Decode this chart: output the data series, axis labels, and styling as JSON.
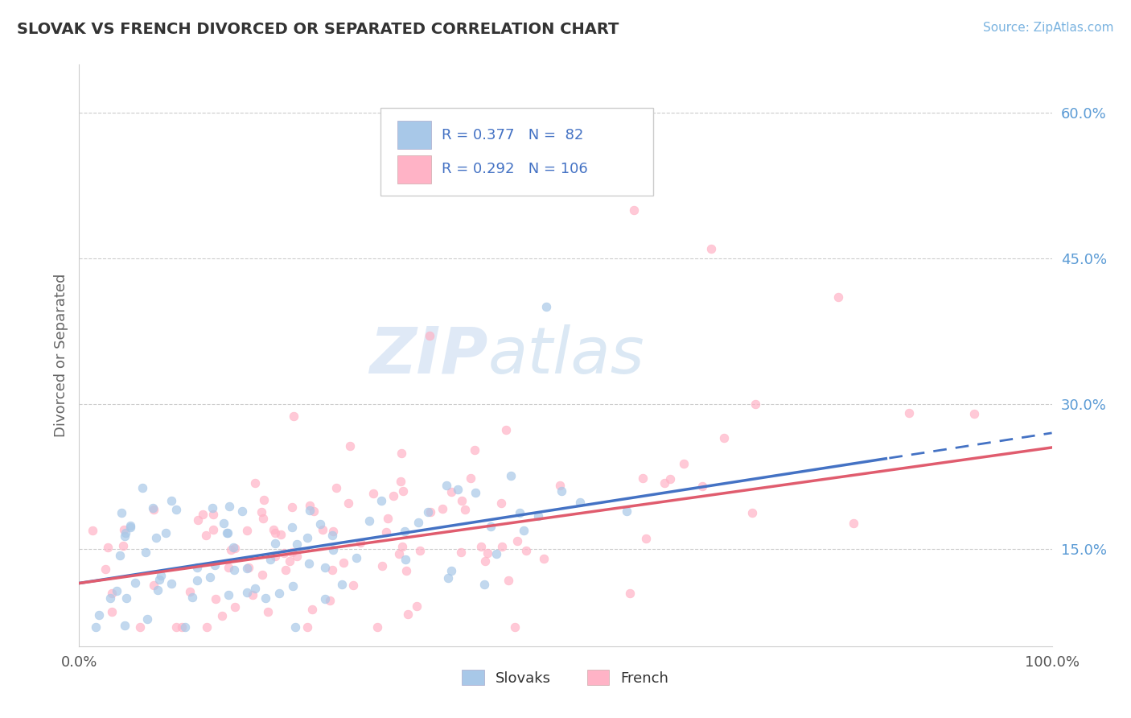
{
  "title": "SLOVAK VS FRENCH DIVORCED OR SEPARATED CORRELATION CHART",
  "source": "Source: ZipAtlas.com",
  "ylabel": "Divorced or Separated",
  "xlim": [
    0.0,
    1.0
  ],
  "ylim": [
    0.05,
    0.65
  ],
  "yticks": [
    0.15,
    0.3,
    0.45,
    0.6
  ],
  "xticks": [
    0.0,
    1.0
  ],
  "xtick_labels": [
    "0.0%",
    "100.0%"
  ],
  "slovak_scatter_color": "#a8c8e8",
  "french_scatter_color": "#ffb3c6",
  "trend_slovak_color": "#4472c4",
  "trend_french_color": "#e05c6e",
  "legend_bottom_slovak": "Slovaks",
  "legend_bottom_french": "French",
  "watermark_zip": "ZIP",
  "watermark_atlas": "atlas",
  "slovak_N": 82,
  "french_N": 106,
  "background_color": "#ffffff",
  "grid_color": "#cccccc",
  "title_color": "#333333",
  "axis_label_color": "#666666",
  "tick_color_right": "#5b9bd5",
  "right_ytick_labels": [
    "15.0%",
    "30.0%",
    "45.0%",
    "60.0%"
  ],
  "right_yticks": [
    0.15,
    0.3,
    0.45,
    0.6
  ],
  "legend_text_color": "#4472c4",
  "source_color": "#7ab3e0"
}
